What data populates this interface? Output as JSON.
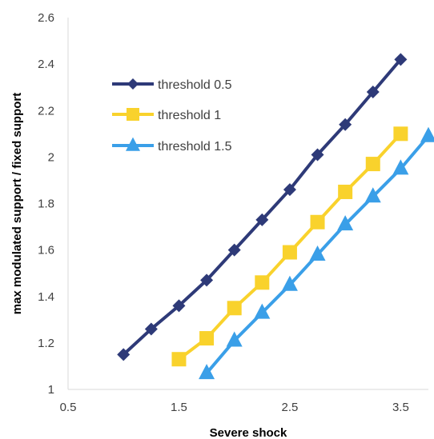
{
  "chart_data": {
    "type": "line",
    "title": "",
    "xlabel": "Severe shock",
    "ylabel": "max modulated support / fixed support",
    "xlim": [
      0.5,
      3.75
    ],
    "ylim": [
      1,
      2.6
    ],
    "x_ticks": [
      "0.5",
      "1.5",
      "2.5",
      "3.5"
    ],
    "x_tick_values": [
      0.5,
      1.5,
      2.5,
      3.5
    ],
    "y_ticks": [
      "1",
      "1.2",
      "1.4",
      "1.6",
      "1.8",
      "2",
      "2.2",
      "2.4",
      "2.6"
    ],
    "y_tick_values": [
      1,
      1.2,
      1.4,
      1.6,
      1.8,
      2,
      2.2,
      2.4,
      2.6
    ],
    "grid": false,
    "legend_position": "top-left",
    "series": [
      {
        "name": "threshold 0.5",
        "color": "#2e3a78",
        "marker": "diamond",
        "x": [
          1.0,
          1.25,
          1.5,
          1.75,
          2.0,
          2.25,
          2.5,
          2.75,
          3.0,
          3.25,
          3.5
        ],
        "y": [
          1.15,
          1.26,
          1.36,
          1.47,
          1.6,
          1.73,
          1.86,
          2.01,
          2.14,
          2.28,
          2.42
        ]
      },
      {
        "name": "threshold 1",
        "color": "#f9d22c",
        "marker": "square",
        "x": [
          1.5,
          1.75,
          2.0,
          2.25,
          2.5,
          2.75,
          3.0,
          3.25,
          3.5
        ],
        "y": [
          1.13,
          1.22,
          1.35,
          1.46,
          1.59,
          1.72,
          1.85,
          1.97,
          2.1
        ]
      },
      {
        "name": "threshold 1.5",
        "color": "#3a9fe8",
        "marker": "triangle",
        "x": [
          1.75,
          2.0,
          2.25,
          2.5,
          2.75,
          3.0,
          3.25,
          3.5,
          3.75
        ],
        "y": [
          1.07,
          1.21,
          1.33,
          1.45,
          1.58,
          1.71,
          1.83,
          1.95,
          2.09
        ]
      }
    ]
  }
}
